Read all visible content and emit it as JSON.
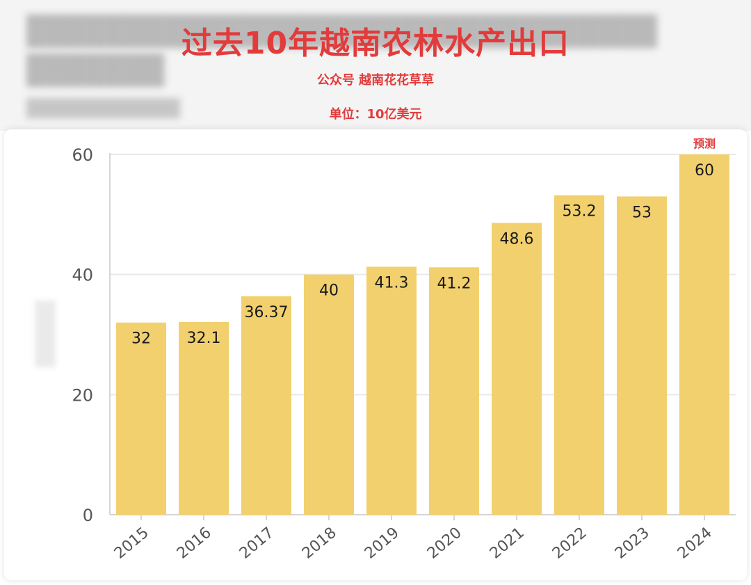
{
  "header": {
    "title": "过去10年越南农林水产出口",
    "subtitle": "公众号 越南花花草草",
    "unit": "单位：10亿美元"
  },
  "chart_data": {
    "type": "bar",
    "title": "过去10年越南农林水产出口",
    "subtitle": "公众号 越南花花草草",
    "unit": "单位：10亿美元",
    "categories": [
      "2015",
      "2016",
      "2017",
      "2018",
      "2019",
      "2020",
      "2021",
      "2022",
      "2023",
      "2024"
    ],
    "values": [
      32,
      32.1,
      36.37,
      40,
      41.3,
      41.2,
      48.6,
      53.2,
      53,
      60
    ],
    "value_labels": [
      "32",
      "32.1",
      "36.37",
      "40",
      "41.3",
      "41.2",
      "48.6",
      "53.2",
      "53",
      "60"
    ],
    "yticks": [
      0,
      20,
      40,
      60
    ],
    "ylim": [
      0,
      60
    ],
    "grid": true,
    "bar_color": "#f2d06e",
    "annotations": [
      {
        "category": "2024",
        "text": "预测"
      }
    ]
  },
  "colors": {
    "accent": "#e23b3b",
    "bar": "#f2d06e"
  }
}
